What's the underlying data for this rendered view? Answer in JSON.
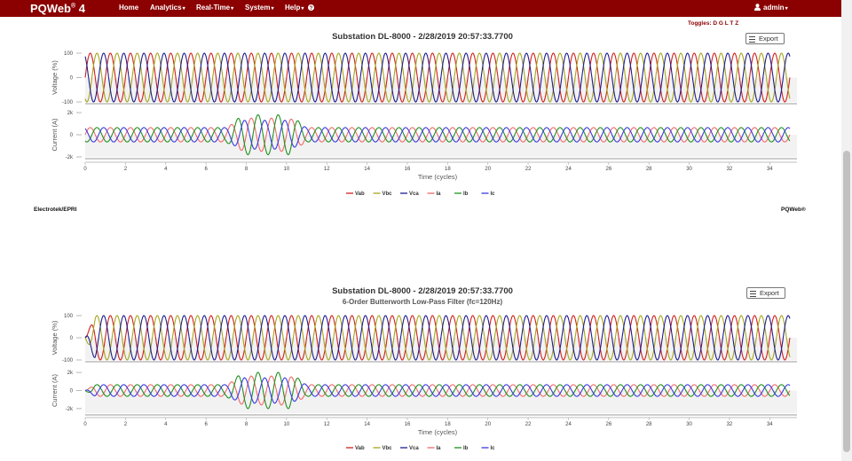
{
  "app": {
    "brand": "PQWeb",
    "brand_mark": "®",
    "brand_version": "4"
  },
  "nav": [
    {
      "label": "Home",
      "dropdown": false
    },
    {
      "label": "Analytics",
      "dropdown": true
    },
    {
      "label": "Real-Time",
      "dropdown": true
    },
    {
      "label": "System",
      "dropdown": true
    },
    {
      "label": "Help",
      "dropdown": true
    }
  ],
  "user": {
    "label": "admin"
  },
  "toggles": "Toggles: D G L T Z",
  "export_label": "Export",
  "footer": {
    "left": "Electrotek/EPRI",
    "right": "PQWeb®"
  },
  "colors": {
    "navbar": "#8b0000",
    "Vab": "#d0201c",
    "Vbc": "#a5a51c",
    "Vca": "#1c1c90",
    "Ia": "#f06a6a",
    "Ib": "#209020",
    "Ic": "#3a3ae0"
  },
  "chart_data": [
    {
      "type": "line",
      "title": "Substation DL-8000 - 2/28/2019 20:57:33.7700",
      "subtitle": "",
      "xlabel": "Time (cycles)",
      "xlim": [
        0,
        35
      ],
      "x_ticks": [
        "0",
        "2",
        "4",
        "6",
        "8",
        "10",
        "12",
        "14",
        "16",
        "18",
        "20",
        "22",
        "24",
        "26",
        "28",
        "30",
        "32",
        "34"
      ],
      "panels": [
        {
          "ylabel": "Voltage (%)",
          "ylim": [
            -100,
            100
          ],
          "y_ticks": [
            "100",
            "0",
            "-100"
          ],
          "series": [
            {
              "name": "Vab",
              "amplitude": 100,
              "phase_deg": 0
            },
            {
              "name": "Vbc",
              "amplitude": 100,
              "phase_deg": -120
            },
            {
              "name": "Vca",
              "amplitude": 100,
              "phase_deg": 120
            }
          ]
        },
        {
          "ylabel": "Current (A)",
          "ylim": [
            -2000,
            2000
          ],
          "y_ticks": [
            "2k",
            "0",
            "-2k"
          ],
          "series": [
            {
              "name": "Ia",
              "amplitude": 650,
              "phase_deg": 0,
              "fault_amplitude": 1500,
              "fault_cycles": [
                7,
                11
              ]
            },
            {
              "name": "Ib",
              "amplitude": 650,
              "phase_deg": -120,
              "fault_amplitude": 1800,
              "fault_cycles": [
                7,
                11
              ]
            },
            {
              "name": "Ic",
              "amplitude": 650,
              "phase_deg": 120,
              "fault_amplitude": 1300,
              "fault_cycles": [
                7,
                11
              ]
            }
          ]
        }
      ],
      "legend": [
        "Vab",
        "Vbc",
        "Vca",
        "Ia",
        "Ib",
        "Ic"
      ],
      "legend_position": "bottom-center"
    },
    {
      "type": "line",
      "title": "Substation DL-8000 - 2/28/2019 20:57:33.7700",
      "subtitle": "6-Order Butterworth Low-Pass Filter (fc=120Hz)",
      "xlabel": "Time (cycles)",
      "xlim": [
        0,
        35
      ],
      "x_ticks": [
        "0",
        "2",
        "4",
        "6",
        "8",
        "10",
        "12",
        "14",
        "16",
        "18",
        "20",
        "22",
        "24",
        "26",
        "28",
        "30",
        "32",
        "34"
      ],
      "panels": [
        {
          "ylabel": "Voltage (%)",
          "ylim": [
            -100,
            100
          ],
          "y_ticks": [
            "100",
            "0",
            "-100"
          ],
          "series": [
            {
              "name": "Vab",
              "amplitude": 100,
              "phase_deg": 0
            },
            {
              "name": "Vbc",
              "amplitude": 100,
              "phase_deg": -120
            },
            {
              "name": "Vca",
              "amplitude": 100,
              "phase_deg": 120
            }
          ]
        },
        {
          "ylabel": "Current (A)",
          "ylim": [
            -2500,
            2500
          ],
          "y_ticks": [
            "2k",
            "0",
            "-2k"
          ],
          "series": [
            {
              "name": "Ia",
              "amplitude": 650,
              "phase_deg": 0,
              "fault_amplitude": 1600,
              "fault_cycles": [
                7,
                11
              ]
            },
            {
              "name": "Ib",
              "amplitude": 650,
              "phase_deg": -120,
              "fault_amplitude": 2000,
              "fault_cycles": [
                7,
                11
              ]
            },
            {
              "name": "Ic",
              "amplitude": 650,
              "phase_deg": 120,
              "fault_amplitude": 1400,
              "fault_cycles": [
                7,
                11
              ]
            }
          ]
        }
      ],
      "legend": [
        "Vab",
        "Vbc",
        "Vca",
        "Ia",
        "Ib",
        "Ic"
      ],
      "legend_position": "bottom-center"
    }
  ]
}
